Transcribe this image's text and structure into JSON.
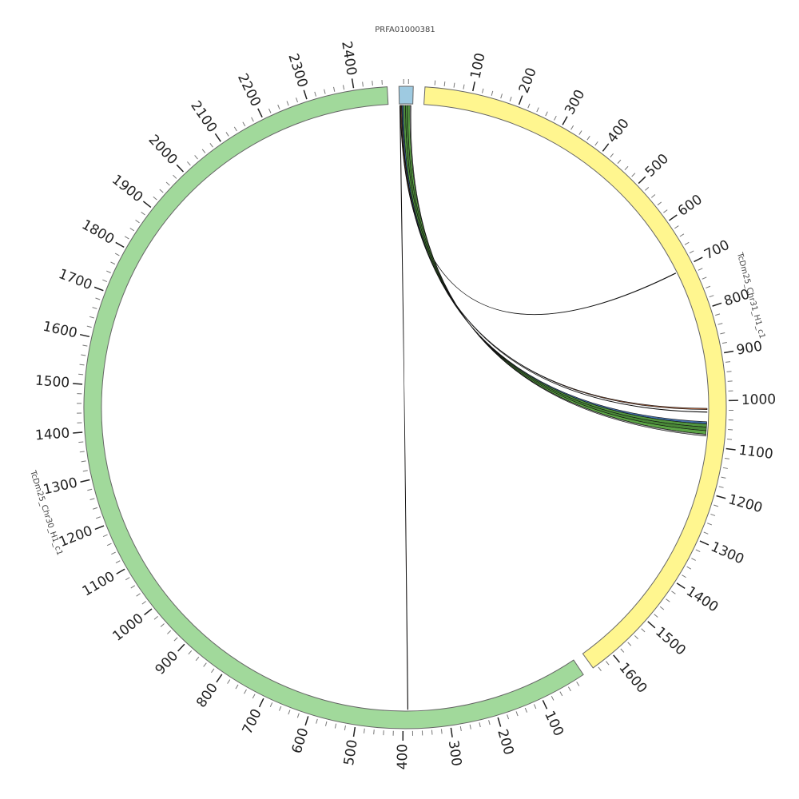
{
  "chart_data": {
    "type": "circos",
    "segments": [
      {
        "name": "PRFA01000381",
        "length": 30,
        "color": "#9ecae1",
        "ticks": [],
        "minor_tick_step": 10
      },
      {
        "name": "TcDm25_Chr31_H1_c1",
        "length": 1650,
        "color": "#fff68f",
        "ticks": [
          100,
          200,
          300,
          400,
          500,
          600,
          700,
          800,
          900,
          1000,
          1100,
          1200,
          1300,
          1400,
          1500,
          1600
        ],
        "minor_tick_step": 20
      },
      {
        "name": "TcDm25_Chr30_H1_c1",
        "length": 2470,
        "color": "#a1d99b",
        "ticks": [
          100,
          200,
          300,
          400,
          500,
          600,
          700,
          800,
          900,
          1000,
          1100,
          1200,
          1300,
          1400,
          1500,
          1600,
          1700,
          1800,
          1900,
          2000,
          2100,
          2200,
          2300,
          2400
        ],
        "minor_tick_step": 20
      }
    ],
    "links": [
      {
        "source": "PRFA01000381",
        "source_start": 1,
        "source_end": 2,
        "target": "TcDm25_Chr30_H1_c1",
        "target_start": 389,
        "target_end": 390,
        "color": "#8b2a1a"
      },
      {
        "source": "PRFA01000381",
        "source_start": 2,
        "source_end": 3,
        "target": "TcDm25_Chr31_H1_c1",
        "target_start": 704,
        "target_end": 705,
        "color": "#333333"
      },
      {
        "source": "PRFA01000381",
        "source_start": 3,
        "source_end": 5,
        "target": "TcDm25_Chr31_H1_c1",
        "target_start": 1016,
        "target_end": 1019,
        "color": "#a0522d"
      },
      {
        "source": "PRFA01000381",
        "source_start": 5,
        "source_end": 6,
        "target": "TcDm25_Chr31_H1_c1",
        "target_start": 1024,
        "target_end": 1025,
        "color": "#333333"
      },
      {
        "source": "PRFA01000381",
        "source_start": 6,
        "source_end": 9,
        "target": "TcDm25_Chr31_H1_c1",
        "target_start": 1046,
        "target_end": 1051,
        "color": "#2f5f9e"
      },
      {
        "source": "PRFA01000381",
        "source_start": 9,
        "source_end": 14,
        "target": "TcDm25_Chr31_H1_c1",
        "target_start": 1051,
        "target_end": 1058,
        "color": "#3f8a2a"
      },
      {
        "source": "PRFA01000381",
        "source_start": 14,
        "source_end": 19,
        "target": "TcDm25_Chr31_H1_c1",
        "target_start": 1058,
        "target_end": 1066,
        "color": "#357a22"
      },
      {
        "source": "PRFA01000381",
        "source_start": 19,
        "source_end": 24,
        "target": "TcDm25_Chr31_H1_c1",
        "target_start": 1066,
        "target_end": 1074,
        "color": "#4a9a32"
      },
      {
        "source": "PRFA01000381",
        "source_start": 24,
        "source_end": 26,
        "target": "TcDm25_Chr31_H1_c1",
        "target_start": 1074,
        "target_end": 1078,
        "color": "#a0a0a0"
      }
    ]
  }
}
